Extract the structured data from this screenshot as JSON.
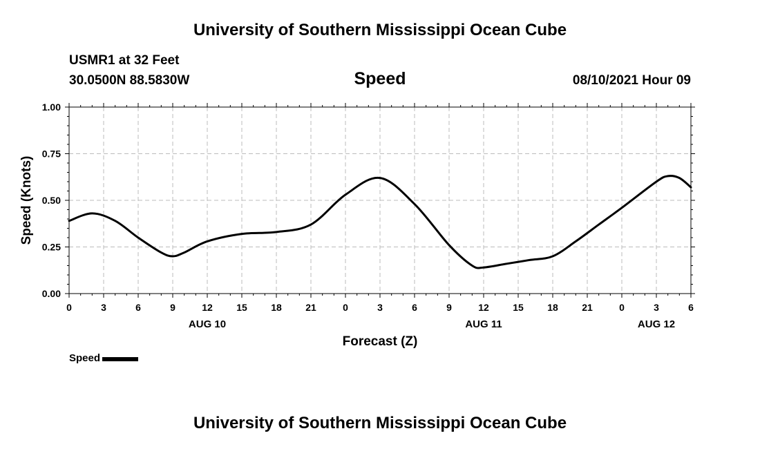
{
  "header": {
    "title_top": "University of Southern Mississippi Ocean Cube",
    "station": "USMR1 at 32 Feet",
    "coords": "30.0500N  88.5830W",
    "chart_title": "Speed",
    "datetime": "08/10/2021 Hour 09",
    "title_bottom": "University of Southern Mississippi Ocean Cube"
  },
  "legend": {
    "label": "Speed"
  },
  "colors": {
    "line": "#000000",
    "grid": "#bbbbbb",
    "background": "#ffffff"
  },
  "chart_data": {
    "type": "line",
    "title": "Speed",
    "xlabel": "Forecast (Z)",
    "ylabel": "Speed (Knots)",
    "ylim": [
      0,
      1
    ],
    "yticks": [
      "0.00",
      "0.25",
      "0.50",
      "0.75",
      "1.00"
    ],
    "xlim": [
      0,
      54
    ],
    "xticks": [
      "0",
      "3",
      "6",
      "9",
      "12",
      "15",
      "18",
      "21",
      "0",
      "3",
      "6",
      "9",
      "12",
      "15",
      "18",
      "21",
      "0",
      "3",
      "6"
    ],
    "date_labels": [
      {
        "label": "AUG 10",
        "tick_index": 4
      },
      {
        "label": "AUG 11",
        "tick_index": 12
      },
      {
        "label": "AUG 12",
        "tick_index": 17
      }
    ],
    "grid": true,
    "legend_position": "bottom-left",
    "series": [
      {
        "name": "Speed",
        "x": [
          0,
          2,
          4,
          6,
          8,
          9,
          10,
          12,
          15,
          18,
          21,
          24,
          27,
          30,
          33,
          35,
          36,
          38,
          40,
          42,
          44,
          46,
          48,
          51,
          52,
          53,
          54
        ],
        "y": [
          0.39,
          0.43,
          0.39,
          0.3,
          0.22,
          0.2,
          0.22,
          0.28,
          0.32,
          0.33,
          0.37,
          0.53,
          0.62,
          0.48,
          0.26,
          0.15,
          0.14,
          0.16,
          0.18,
          0.2,
          0.28,
          0.37,
          0.46,
          0.6,
          0.63,
          0.62,
          0.57
        ]
      }
    ]
  }
}
